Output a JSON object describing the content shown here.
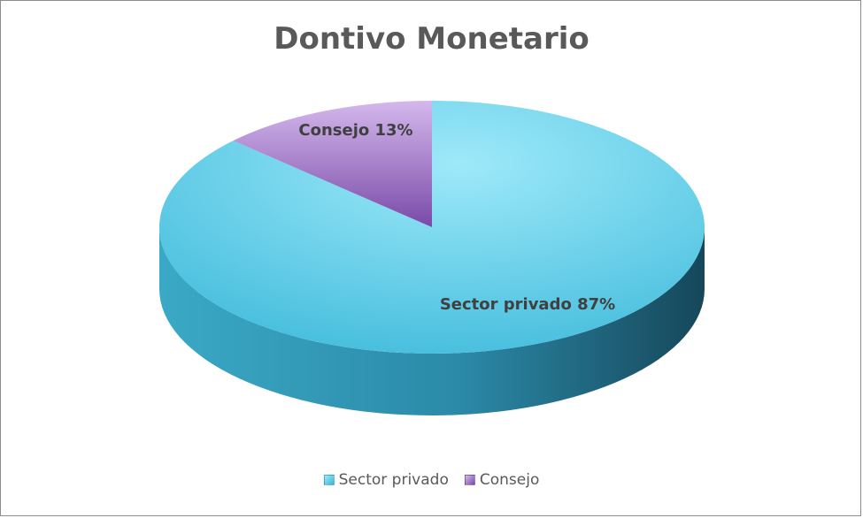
{
  "chart_data": {
    "type": "pie",
    "title": "Dontivo Monetario",
    "series": [
      {
        "name": "Sector privado",
        "value": 87,
        "label": "Sector privado 87%",
        "colors": {
          "top_light": "#9ee9f9",
          "top_dark": "#38b7d9",
          "side_light": "#3aa9c6",
          "side_dark": "#16475a"
        }
      },
      {
        "name": "Consejo",
        "value": 13,
        "label": "Consejo 13%",
        "colors": {
          "top_light": "#d4b8ec",
          "top_dark": "#7a4aa8",
          "side_light": "#7f52ad",
          "side_dark": "#4a2c6a"
        }
      }
    ],
    "legend_position": "bottom"
  }
}
